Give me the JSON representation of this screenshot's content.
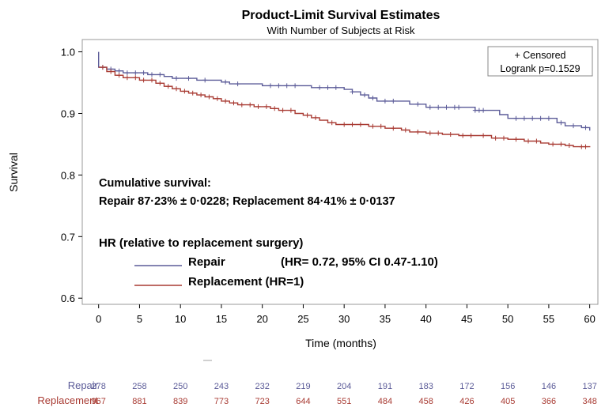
{
  "chart_data": {
    "type": "line",
    "title": "Product-Limit Survival Estimates",
    "subtitle": "With Number of Subjects at Risk",
    "xlabel": "Time (months)",
    "ylabel": "Survival",
    "xlim": [
      -2,
      61
    ],
    "ylim": [
      0.59,
      1.02
    ],
    "xticks": [
      0,
      5,
      10,
      15,
      20,
      25,
      30,
      35,
      40,
      45,
      50,
      55,
      60
    ],
    "yticks": [
      0.6,
      0.7,
      0.8,
      0.9,
      1.0
    ],
    "ytick_labels": [
      "0.6",
      "0.7",
      "0.8",
      "0.9",
      "1.0"
    ],
    "legend": {
      "censored_label": "+ Censored",
      "logrank_label": "Logrank p=0.1529"
    },
    "series": [
      {
        "name": "Repair",
        "color": "#5b5b98",
        "steps": [
          [
            0,
            1.0
          ],
          [
            0,
            0.975
          ],
          [
            1,
            0.972
          ],
          [
            2,
            0.969
          ],
          [
            3,
            0.966
          ],
          [
            6,
            0.963
          ],
          [
            8,
            0.96
          ],
          [
            9,
            0.957
          ],
          [
            12,
            0.954
          ],
          [
            15,
            0.951
          ],
          [
            16,
            0.948
          ],
          [
            20,
            0.945
          ],
          [
            26,
            0.942
          ],
          [
            30,
            0.939
          ],
          [
            31,
            0.935
          ],
          [
            32,
            0.93
          ],
          [
            33,
            0.925
          ],
          [
            34,
            0.92
          ],
          [
            38,
            0.915
          ],
          [
            40,
            0.91
          ],
          [
            46,
            0.905
          ],
          [
            49,
            0.898
          ],
          [
            50,
            0.892
          ],
          [
            56,
            0.885
          ],
          [
            57,
            0.88
          ],
          [
            59,
            0.877
          ],
          [
            60,
            0.872
          ]
        ],
        "censored": [
          0.5,
          1.5,
          2.5,
          3.5,
          4.5,
          5.5,
          6.5,
          7.5,
          9.5,
          11,
          13,
          15.5,
          17,
          21,
          22,
          23,
          24,
          27,
          28,
          29,
          31,
          32.5,
          33.5,
          35,
          36,
          39,
          40.5,
          41.5,
          42.5,
          43.5,
          44,
          46,
          46.5,
          47,
          51,
          52,
          53,
          54,
          55,
          56.5,
          58,
          59.5
        ]
      },
      {
        "name": "Replacement",
        "color": "#a83a32",
        "steps": [
          [
            0,
            0.975
          ],
          [
            1,
            0.968
          ],
          [
            2,
            0.962
          ],
          [
            3,
            0.958
          ],
          [
            5,
            0.954
          ],
          [
            7,
            0.949
          ],
          [
            8,
            0.944
          ],
          [
            9,
            0.94
          ],
          [
            10,
            0.936
          ],
          [
            11,
            0.933
          ],
          [
            12,
            0.93
          ],
          [
            13,
            0.927
          ],
          [
            14,
            0.924
          ],
          [
            15,
            0.92
          ],
          [
            16,
            0.917
          ],
          [
            17,
            0.914
          ],
          [
            19,
            0.911
          ],
          [
            21,
            0.908
          ],
          [
            22,
            0.905
          ],
          [
            24,
            0.9
          ],
          [
            25,
            0.897
          ],
          [
            26,
            0.893
          ],
          [
            27,
            0.889
          ],
          [
            28,
            0.885
          ],
          [
            29,
            0.882
          ],
          [
            33,
            0.879
          ],
          [
            35,
            0.876
          ],
          [
            37,
            0.873
          ],
          [
            38,
            0.87
          ],
          [
            40,
            0.868
          ],
          [
            42,
            0.866
          ],
          [
            44,
            0.864
          ],
          [
            48,
            0.86
          ],
          [
            50,
            0.858
          ],
          [
            52,
            0.855
          ],
          [
            54,
            0.852
          ],
          [
            55,
            0.85
          ],
          [
            57,
            0.848
          ],
          [
            58,
            0.846
          ],
          [
            60,
            0.845
          ]
        ],
        "censored": [
          0.5,
          1.5,
          2.5,
          3.5,
          4.5,
          5.5,
          6.5,
          7.5,
          8.5,
          9.5,
          10.5,
          11.5,
          12.5,
          13.5,
          14.5,
          15.5,
          16.5,
          17.5,
          18.5,
          19.5,
          20.5,
          21.5,
          22.5,
          23.5,
          25.5,
          26.5,
          28.5,
          30,
          31,
          32,
          33.5,
          34.5,
          36,
          37.5,
          39,
          40.5,
          41.5,
          43,
          44.5,
          45.5,
          47,
          48.5,
          49.5,
          51,
          52.5,
          53.5,
          55.5,
          56.5,
          57.5,
          59,
          59.5
        ]
      }
    ],
    "annotations": {
      "cum_title": "Cumulative survival:",
      "cum_values": "Repair 87·23% ± 0·0228; Replacement 84·41% ± 0·0137",
      "hr_title": "HR (relative to replacement surgery)",
      "hr_repair_name": "Repair",
      "hr_repair_value": "(HR= 0.72, 95% CI 0.47-1.10)",
      "hr_replacement": "Replacement (HR=1)"
    },
    "at_risk": {
      "times": [
        0,
        5,
        10,
        15,
        20,
        25,
        30,
        35,
        40,
        45,
        50,
        55,
        60
      ],
      "rows": [
        {
          "label": "Repair",
          "color": "#5b5b98",
          "values": [
            278,
            258,
            250,
            243,
            232,
            219,
            204,
            191,
            183,
            172,
            156,
            146,
            137
          ]
        },
        {
          "label": "Replacement",
          "color": "#a83a32",
          "values": [
            967,
            881,
            839,
            773,
            723,
            644,
            551,
            484,
            458,
            426,
            405,
            366,
            348
          ]
        }
      ]
    }
  }
}
